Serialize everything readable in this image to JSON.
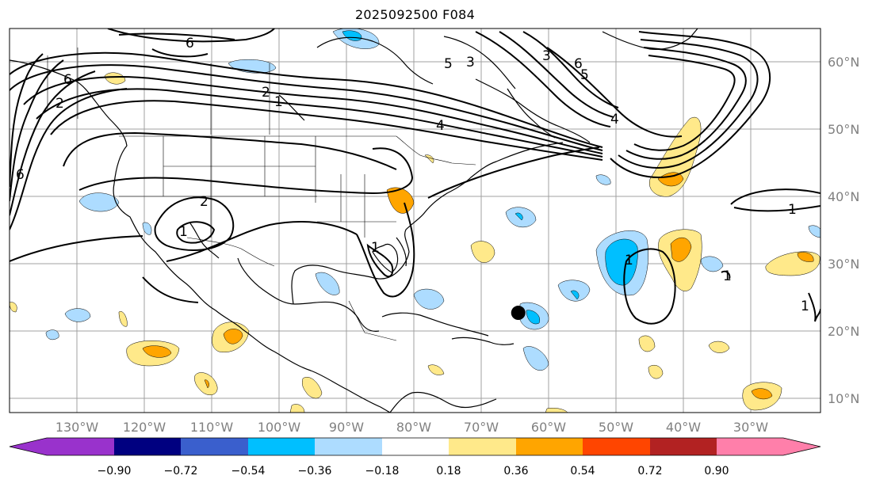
{
  "title": "2025092500 F084",
  "colors": {
    "neg_extreme": "#9932CC",
    "neg_090": "#000080",
    "neg_072": "#3A5FCD",
    "neg_054": "#00BFFF",
    "neg_036": "#ADDCFF",
    "neutral": "#FFFFFF",
    "pos_018": "#FFE98A",
    "pos_036": "#FFA500",
    "pos_054": "#FF4500",
    "pos_072": "#B22222",
    "pos_090": "#FF7FAA",
    "pos_extreme": "#FF7FAA",
    "contour": "#000000",
    "grid": "#a0a0a0",
    "axis_label": "#808080"
  },
  "lat_labels": [
    "60°N",
    "50°N",
    "40°N",
    "30°N",
    "20°N",
    "10°N"
  ],
  "lon_labels": [
    "130°W",
    "120°W",
    "110°W",
    "100°W",
    "90°W",
    "80°W",
    "70°W",
    "60°W",
    "50°W",
    "40°W",
    "30°W"
  ],
  "colorbar": {
    "ticks": [
      "−0.90",
      "−0.72",
      "−0.54",
      "−0.36",
      "−0.18",
      "0.18",
      "0.36",
      "0.54",
      "0.72",
      "0.90"
    ],
    "extend": "both"
  },
  "contour_labels": [
    "6",
    "6",
    "6",
    "2",
    "2",
    "1",
    "5",
    "3",
    "3",
    "6",
    "5",
    "4",
    "4",
    "2",
    "1",
    "1",
    "1",
    "1",
    "1",
    "1"
  ],
  "marker": {
    "lon": -64.5,
    "lat": 22.7,
    "color": "#000000"
  },
  "grid": "on"
}
